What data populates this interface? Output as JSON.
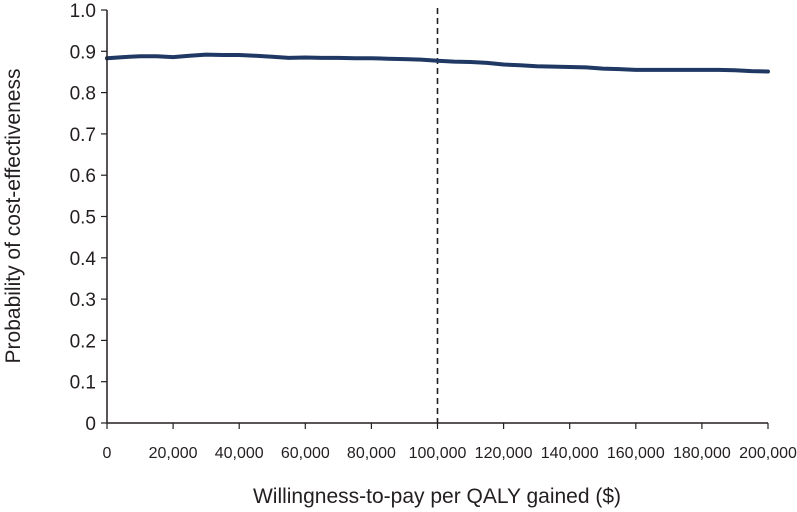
{
  "chart_data": {
    "type": "line",
    "title": "",
    "xlabel": "Willingness-to-pay per QALY gained ($)",
    "ylabel": "Probability of cost-effectiveness",
    "xlim": [
      0,
      200000
    ],
    "ylim": [
      0,
      1.0
    ],
    "x_ticks": [
      0,
      20000,
      40000,
      60000,
      80000,
      100000,
      120000,
      140000,
      160000,
      180000,
      200000
    ],
    "x_tick_labels": [
      "0",
      "20,000",
      "40,000",
      "60,000",
      "80,000",
      "100,000",
      "120,000",
      "140,000",
      "160,000",
      "180,000",
      "200,000"
    ],
    "y_ticks": [
      0,
      0.1,
      0.2,
      0.3,
      0.4,
      0.5,
      0.6,
      0.7,
      0.8,
      0.9,
      1.0
    ],
    "y_tick_labels": [
      "0",
      "0.1",
      "0.2",
      "0.3",
      "0.4",
      "0.5",
      "0.6",
      "0.7",
      "0.8",
      "0.9",
      "1.0"
    ],
    "grid": false,
    "reference_line": {
      "x": 100000,
      "style": "dashed"
    },
    "series": [
      {
        "color": "#203864",
        "x": [
          0,
          5000,
          10000,
          15000,
          20000,
          25000,
          30000,
          35000,
          40000,
          45000,
          50000,
          55000,
          60000,
          65000,
          70000,
          75000,
          80000,
          85000,
          90000,
          95000,
          100000,
          105000,
          110000,
          115000,
          120000,
          125000,
          130000,
          135000,
          140000,
          145000,
          150000,
          155000,
          160000,
          165000,
          170000,
          175000,
          180000,
          185000,
          190000,
          195000,
          200000
        ],
        "y": [
          0.883,
          0.886,
          0.888,
          0.888,
          0.886,
          0.889,
          0.892,
          0.891,
          0.891,
          0.889,
          0.887,
          0.884,
          0.885,
          0.884,
          0.884,
          0.883,
          0.883,
          0.882,
          0.881,
          0.88,
          0.877,
          0.875,
          0.874,
          0.872,
          0.868,
          0.866,
          0.864,
          0.863,
          0.862,
          0.861,
          0.858,
          0.857,
          0.855,
          0.855,
          0.855,
          0.855,
          0.855,
          0.855,
          0.854,
          0.852,
          0.851
        ]
      }
    ]
  }
}
